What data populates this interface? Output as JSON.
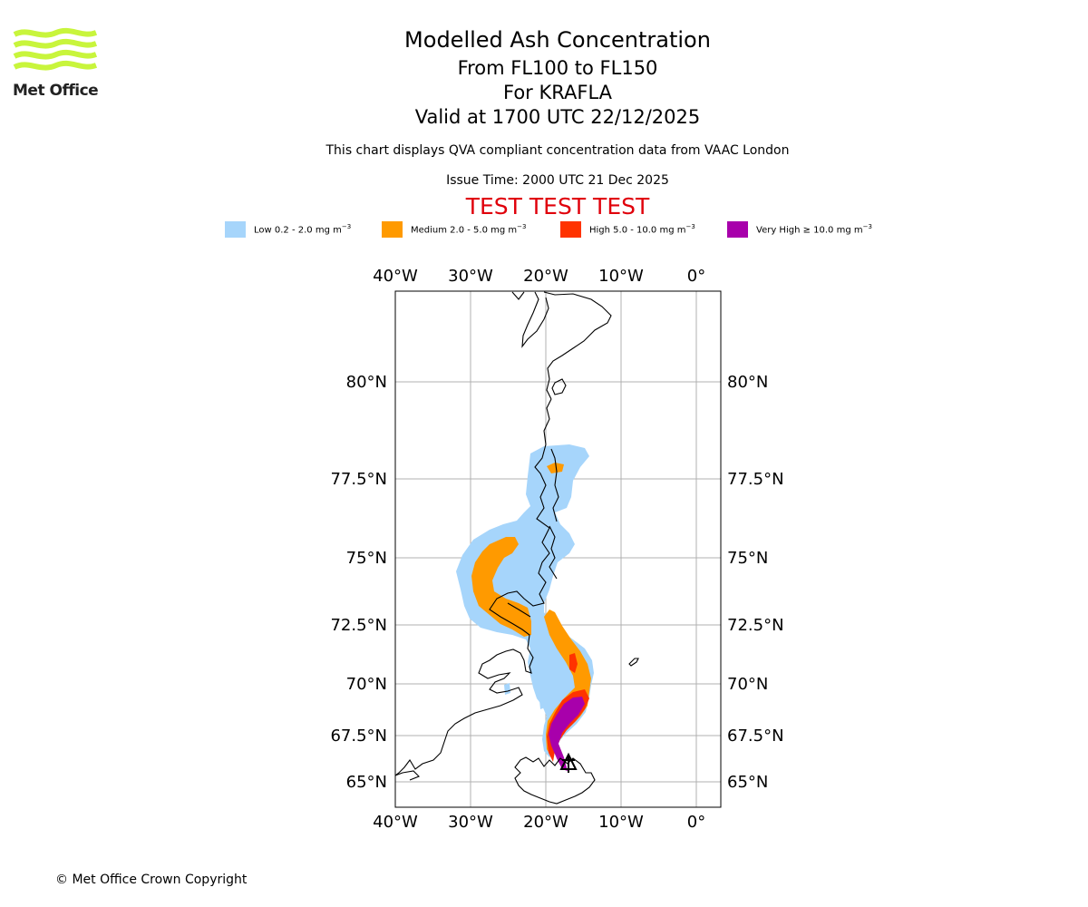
{
  "logo": {
    "text": "Met Office",
    "color": "#c8f53c",
    "text_color": "#222222"
  },
  "header": {
    "title": "Modelled Ash Concentration",
    "levels": "From FL100 to FL150",
    "volcano": "For KRAFLA",
    "valid": "Valid at 1700 UTC 22/12/2025",
    "subtitle": "This chart displays QVA compliant concentration data from VAAC London",
    "issue_time": "Issue Time: 2000 UTC 21 Dec 2025",
    "test_banner": "TEST TEST TEST"
  },
  "legend": [
    {
      "label": "Low 0.2 - 2.0 mg m",
      "unit_exp": "−3",
      "color": "#a6d5fb"
    },
    {
      "label": "Medium 2.0 - 5.0 mg m",
      "unit_exp": "−3",
      "color": "#ff9a00"
    },
    {
      "label": "High 5.0 - 10.0 mg m",
      "unit_exp": "−3",
      "color": "#ff3300"
    },
    {
      "label": "Very High ≥ 10.0 mg m",
      "unit_exp": "−3",
      "color": "#a800ab"
    }
  ],
  "map": {
    "lon_ticks": [
      "40°W",
      "30°W",
      "20°W",
      "10°W",
      "0°"
    ],
    "lat_ticks": [
      "80°N",
      "77.5°N",
      "75°N",
      "72.5°N",
      "70°N",
      "67.5°N",
      "65°N"
    ],
    "gridline_color": "#b0b0b0",
    "volcano_marker": "triangle"
  },
  "footer": {
    "copyright": "© Met Office Crown Copyright"
  }
}
